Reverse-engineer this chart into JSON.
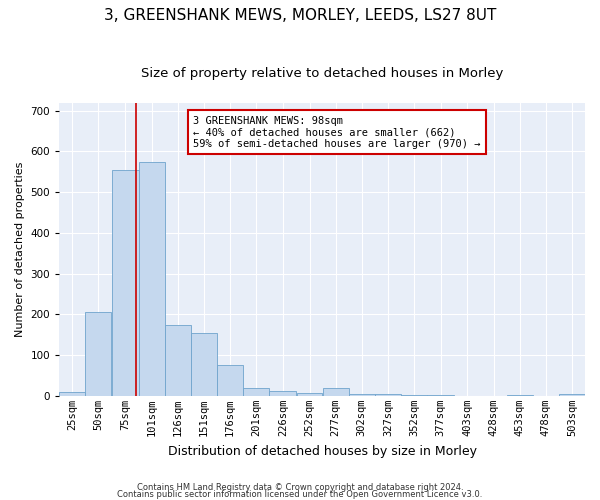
{
  "title": "3, GREENSHANK MEWS, MORLEY, LEEDS, LS27 8UT",
  "subtitle": "Size of property relative to detached houses in Morley",
  "xlabel": "Distribution of detached houses by size in Morley",
  "ylabel": "Number of detached properties",
  "footer_line1": "Contains HM Land Registry data © Crown copyright and database right 2024.",
  "footer_line2": "Contains public sector information licensed under the Open Government Licence v3.0.",
  "annotation_line1": "3 GREENSHANK MEWS: 98sqm",
  "annotation_line2": "← 40% of detached houses are smaller (662)",
  "annotation_line3": "59% of semi-detached houses are larger (970) →",
  "property_size": 98,
  "bin_edges": [
    25,
    50,
    75,
    101,
    126,
    151,
    176,
    201,
    226,
    252,
    277,
    302,
    327,
    352,
    377,
    403,
    428,
    453,
    478,
    503,
    528
  ],
  "bar_values": [
    10,
    205,
    555,
    575,
    175,
    155,
    75,
    20,
    12,
    8,
    20,
    5,
    5,
    2,
    2,
    0,
    0,
    2,
    0,
    5
  ],
  "bar_color": "#c5d8ee",
  "bar_edge_color": "#6fa3cc",
  "vline_color": "#cc0000",
  "vline_x": 98,
  "annotation_box_color": "#cc0000",
  "background_color": "#e8eef8",
  "ylim": [
    0,
    720
  ],
  "yticks": [
    0,
    100,
    200,
    300,
    400,
    500,
    600,
    700
  ],
  "grid_color": "#ffffff",
  "title_fontsize": 11,
  "subtitle_fontsize": 9.5,
  "xlabel_fontsize": 9,
  "ylabel_fontsize": 8,
  "tick_fontsize": 7.5,
  "annot_fontsize": 7.5
}
